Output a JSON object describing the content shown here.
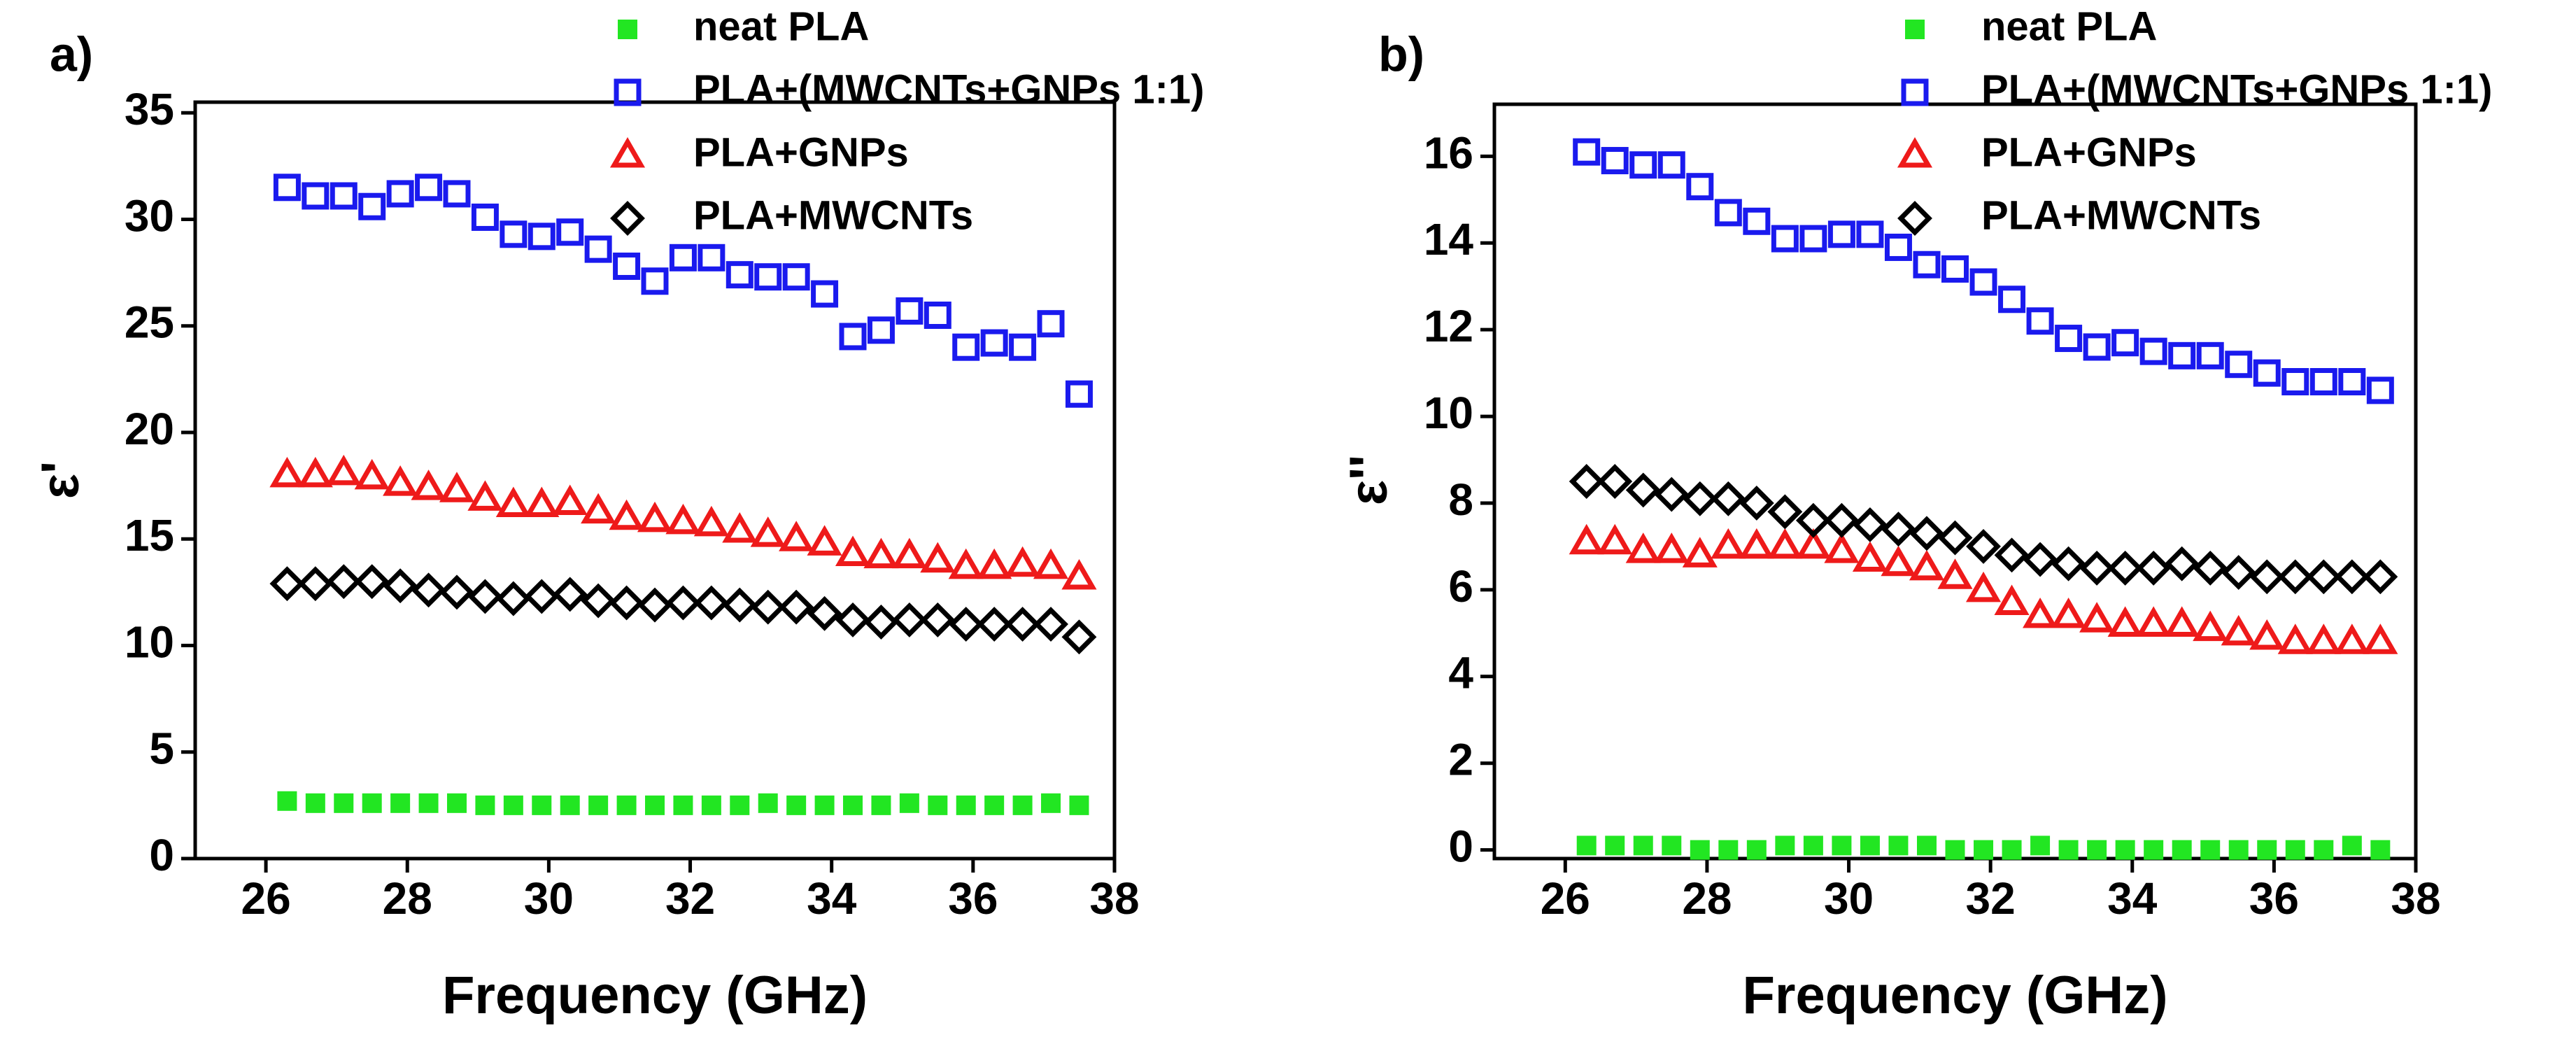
{
  "chart_data": [
    {
      "type": "scatter",
      "panel_label": "a)",
      "ylabel": "ε'",
      "xlabel": "Frequency (GHz)",
      "xlim": [
        25,
        38
      ],
      "xticks": [
        26,
        28,
        30,
        32,
        34,
        36,
        38
      ],
      "ylim": [
        0,
        35.5
      ],
      "yticks": [
        0,
        5,
        10,
        15,
        20,
        25,
        30,
        35
      ],
      "x": [
        26.3,
        26.7,
        27.1,
        27.5,
        27.9,
        28.3,
        28.7,
        29.1,
        29.5,
        29.9,
        30.3,
        30.7,
        31.1,
        31.5,
        31.9,
        32.3,
        32.7,
        33.1,
        33.5,
        33.9,
        34.3,
        34.7,
        35.1,
        35.5,
        35.9,
        36.3,
        36.7,
        37.1,
        37.5
      ],
      "series": [
        {
          "name": "neat PLA",
          "color": "#22e622",
          "marker": "filled-square",
          "values": [
            2.7,
            2.6,
            2.6,
            2.6,
            2.6,
            2.6,
            2.6,
            2.5,
            2.5,
            2.5,
            2.5,
            2.5,
            2.5,
            2.5,
            2.5,
            2.5,
            2.5,
            2.6,
            2.5,
            2.5,
            2.5,
            2.5,
            2.6,
            2.5,
            2.5,
            2.5,
            2.5,
            2.6,
            2.5
          ]
        },
        {
          "name": "PLA+(MWCNTs+GNPs 1:1)",
          "color": "#1a1aee",
          "marker": "square",
          "values": [
            31.5,
            31.1,
            31.1,
            30.6,
            31.2,
            31.5,
            31.2,
            30.1,
            29.3,
            29.2,
            29.4,
            28.6,
            27.8,
            27.1,
            28.2,
            28.2,
            27.4,
            27.3,
            27.3,
            26.5,
            24.5,
            24.8,
            25.7,
            25.5,
            24.0,
            24.2,
            24.0,
            25.1,
            21.8
          ]
        },
        {
          "name": "PLA+GNPs",
          "color": "#ee1a1a",
          "marker": "triangle",
          "values": [
            18.0,
            18.0,
            18.1,
            17.9,
            17.6,
            17.4,
            17.3,
            16.9,
            16.6,
            16.6,
            16.7,
            16.3,
            16.0,
            15.9,
            15.8,
            15.7,
            15.4,
            15.2,
            15.0,
            14.8,
            14.3,
            14.2,
            14.2,
            14.0,
            13.7,
            13.7,
            13.8,
            13.7,
            13.2
          ]
        },
        {
          "name": "PLA+MWCNTs",
          "color": "#000000",
          "marker": "diamond",
          "values": [
            12.9,
            12.9,
            13.0,
            13.0,
            12.8,
            12.6,
            12.5,
            12.3,
            12.2,
            12.3,
            12.4,
            12.1,
            12.0,
            11.9,
            12.0,
            12.0,
            11.9,
            11.8,
            11.8,
            11.5,
            11.2,
            11.1,
            11.2,
            11.2,
            11.0,
            11.0,
            11.0,
            11.0,
            10.4
          ]
        }
      ]
    },
    {
      "type": "scatter",
      "panel_label": "b)",
      "ylabel": "ε''",
      "xlabel": "Frequency (GHz)",
      "xlim": [
        25,
        38
      ],
      "xticks": [
        26,
        28,
        30,
        32,
        34,
        36,
        38
      ],
      "ylim": [
        -0.2,
        17.2
      ],
      "yticks": [
        0,
        2,
        4,
        6,
        8,
        10,
        12,
        14,
        16
      ],
      "x": [
        26.3,
        26.7,
        27.1,
        27.5,
        27.9,
        28.3,
        28.7,
        29.1,
        29.5,
        29.9,
        30.3,
        30.7,
        31.1,
        31.5,
        31.9,
        32.3,
        32.7,
        33.1,
        33.5,
        33.9,
        34.3,
        34.7,
        35.1,
        35.5,
        35.9,
        36.3,
        36.7,
        37.1,
        37.5
      ],
      "series": [
        {
          "name": "neat PLA",
          "color": "#22e622",
          "marker": "filled-square",
          "values": [
            0.1,
            0.1,
            0.1,
            0.1,
            0.0,
            0.0,
            0.0,
            0.1,
            0.1,
            0.1,
            0.1,
            0.1,
            0.1,
            0.0,
            0.0,
            0.0,
            0.1,
            0.0,
            0.0,
            0.0,
            0.0,
            0.0,
            0.0,
            0.0,
            0.0,
            0.0,
            0.0,
            0.1,
            0.0
          ]
        },
        {
          "name": "PLA+(MWCNTs+GNPs 1:1)",
          "color": "#1a1aee",
          "marker": "square",
          "values": [
            16.1,
            15.9,
            15.8,
            15.8,
            15.3,
            14.7,
            14.5,
            14.1,
            14.1,
            14.2,
            14.2,
            13.9,
            13.5,
            13.4,
            13.1,
            12.7,
            12.2,
            11.8,
            11.6,
            11.7,
            11.5,
            11.4,
            11.4,
            11.2,
            11.0,
            10.8,
            10.8,
            10.8,
            10.6
          ]
        },
        {
          "name": "PLA+GNPs",
          "color": "#ee1a1a",
          "marker": "triangle",
          "values": [
            7.1,
            7.1,
            6.9,
            6.9,
            6.8,
            7.0,
            7.0,
            7.0,
            7.0,
            6.9,
            6.7,
            6.6,
            6.5,
            6.3,
            6.0,
            5.7,
            5.4,
            5.4,
            5.3,
            5.2,
            5.2,
            5.2,
            5.1,
            5.0,
            4.9,
            4.8,
            4.8,
            4.8,
            4.8
          ]
        },
        {
          "name": "PLA+MWCNTs",
          "color": "#000000",
          "marker": "diamond",
          "values": [
            8.5,
            8.5,
            8.3,
            8.2,
            8.1,
            8.1,
            8.0,
            7.8,
            7.6,
            7.6,
            7.5,
            7.4,
            7.3,
            7.2,
            7.0,
            6.8,
            6.7,
            6.6,
            6.5,
            6.5,
            6.5,
            6.6,
            6.5,
            6.4,
            6.3,
            6.3,
            6.3,
            6.3,
            6.3
          ]
        }
      ]
    }
  ]
}
